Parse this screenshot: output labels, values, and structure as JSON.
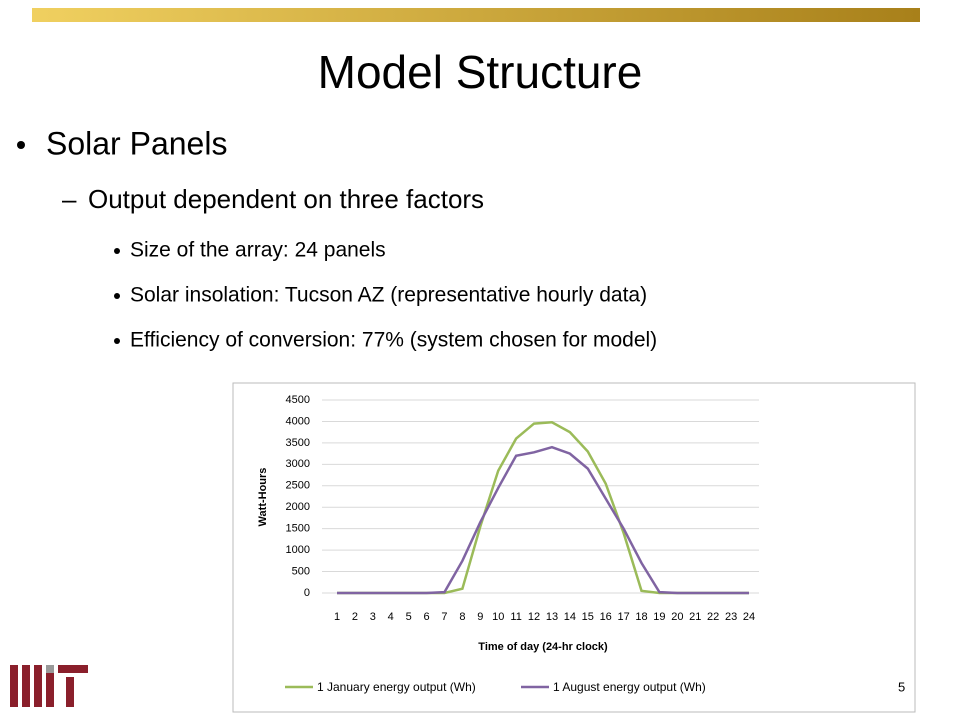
{
  "slide": {
    "title": "Model Structure",
    "bullet": "Solar Panels",
    "sub_bullet": "Output dependent on three factors",
    "points": [
      "Size of the array: 24 panels",
      "Solar insolation: Tucson AZ (representative hourly data)",
      "Efficiency of conversion: 77% (system chosen for model)"
    ],
    "page_number": "5"
  },
  "chart_data": {
    "type": "line",
    "x_label": "Time of day (24-hr clock)",
    "y_label": "Watt-Hours",
    "categories": [
      "1",
      "2",
      "3",
      "4",
      "5",
      "6",
      "7",
      "8",
      "9",
      "10",
      "11",
      "12",
      "13",
      "14",
      "15",
      "16",
      "17",
      "18",
      "19",
      "20",
      "21",
      "22",
      "23",
      "24"
    ],
    "series": [
      {
        "name": "1 January energy output (Wh)",
        "color": "#9bbb59",
        "values": [
          0,
          0,
          0,
          0,
          0,
          0,
          0,
          100,
          1550,
          2850,
          3600,
          3950,
          3980,
          3750,
          3300,
          2550,
          1400,
          50,
          0,
          0,
          0,
          0,
          0,
          0
        ]
      },
      {
        "name": "1 August energy output (Wh)",
        "color": "#8064a2",
        "values": [
          0,
          0,
          0,
          0,
          0,
          0,
          20,
          750,
          1650,
          2450,
          3200,
          3280,
          3400,
          3250,
          2900,
          2200,
          1500,
          700,
          20,
          0,
          0,
          0,
          0,
          0
        ]
      }
    ],
    "ylim": [
      0,
      4500
    ],
    "yticks": [
      0,
      500,
      1000,
      1500,
      2000,
      2500,
      3000,
      3500,
      4000,
      4500
    ],
    "grid": true,
    "legend": "bottom"
  }
}
